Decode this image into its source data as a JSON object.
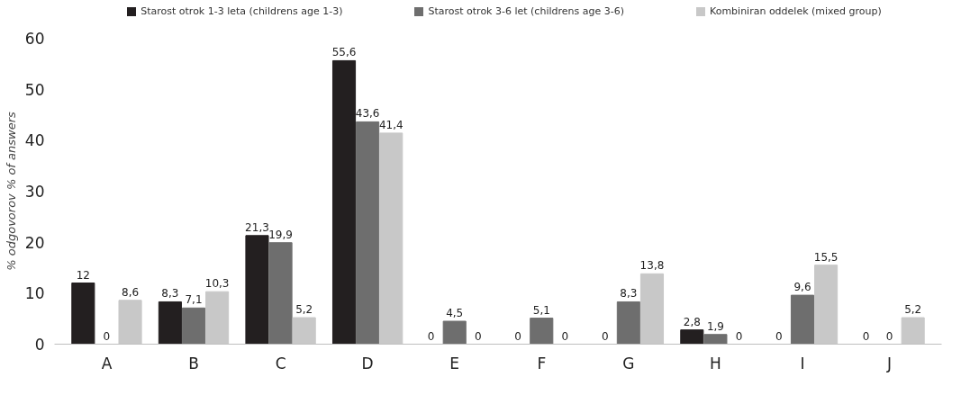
{
  "chart_data": {
    "type": "bar",
    "ylabel": "% odgovorov % of answers",
    "categories": [
      "A",
      "B",
      "C",
      "D",
      "E",
      "F",
      "G",
      "H",
      "I",
      "J"
    ],
    "series": [
      {
        "name": "Starost otrok 1-3 leta (childrens age 1-3)",
        "color": "#231f20",
        "values": [
          12,
          8.3,
          21.3,
          55.6,
          0,
          0,
          0,
          2.8,
          0,
          0
        ],
        "value_labels": [
          "12",
          "8,3",
          "21,3",
          "55,6",
          "0",
          "0",
          "0",
          "2,8",
          "0",
          "0"
        ]
      },
      {
        "name": "Starost otrok 3-6 let (childrens age 3-6)",
        "color": "#6e6e6e",
        "values": [
          0,
          7.1,
          19.9,
          43.6,
          4.5,
          5.1,
          8.3,
          1.9,
          9.6,
          0
        ],
        "value_labels": [
          "0",
          "7,1",
          "19,9",
          "43,6",
          "4,5",
          "5,1",
          "8,3",
          "1,9",
          "9,6",
          "0"
        ]
      },
      {
        "name": "Kombiniran oddelek (mixed group)",
        "color": "#c8c8c8",
        "values": [
          8.6,
          10.3,
          5.2,
          41.4,
          0,
          0,
          13.8,
          0,
          15.5,
          5.2
        ],
        "value_labels": [
          "8,6",
          "10,3",
          "5,2",
          "41,4",
          "0",
          "0",
          "13,8",
          "0",
          "15,5",
          "5,2"
        ]
      }
    ],
    "ylim": [
      0,
      60
    ],
    "yticks": [
      0,
      10,
      20,
      30,
      40,
      50,
      60
    ],
    "grid": false,
    "legend": "top"
  }
}
